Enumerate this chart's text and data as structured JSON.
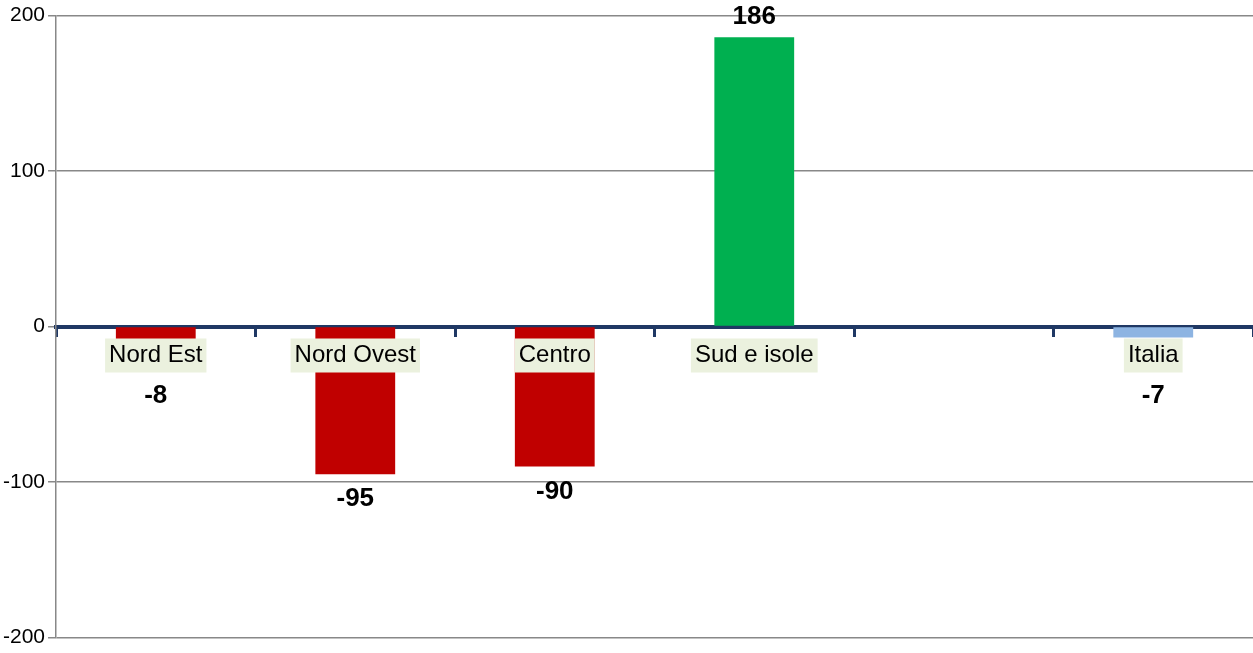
{
  "chart_data": {
    "type": "bar",
    "categories": [
      "Nord Est",
      "Nord Ovest",
      "Centro",
      "Sud e isole",
      null,
      "Italia"
    ],
    "values": [
      -8,
      -95,
      -90,
      186,
      null,
      -7
    ],
    "colors": [
      "#c00000",
      "#c00000",
      "#c00000",
      "#00b050",
      "#c00000",
      "#8db4e2"
    ],
    "ylim": [
      -200,
      200
    ],
    "yticks": [
      -200,
      -100,
      0,
      100,
      200
    ],
    "grid": "y",
    "data_labels": true,
    "legend": false
  }
}
